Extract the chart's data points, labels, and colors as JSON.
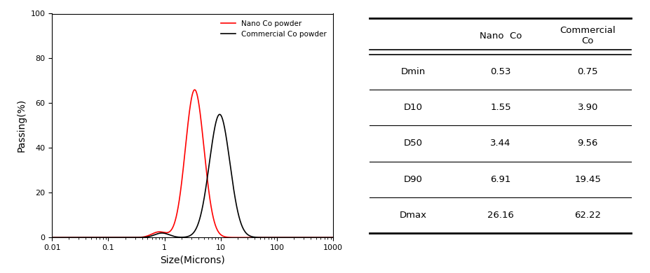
{
  "nano_peak": 3.44,
  "nano_sigma": 0.38,
  "nano_peak_height": 66,
  "commercial_peak": 9.56,
  "commercial_sigma": 0.42,
  "commercial_peak_height": 55,
  "nano_color": "#ff0000",
  "commercial_color": "#000000",
  "xlim_log": [
    0.01,
    1000
  ],
  "ylim": [
    0,
    100
  ],
  "xlabel": "Size(Microns)",
  "ylabel": "Passing(%)",
  "legend_nano": "Nano Co powder",
  "legend_commercial": "Commercial Co powder",
  "table_rows": [
    "Dmin",
    "D10",
    "D50",
    "D90",
    "Dmax"
  ],
  "nano_values": [
    "0.53",
    "1.55",
    "3.44",
    "6.91",
    "26.16"
  ],
  "commercial_values": [
    "0.75",
    "3.90",
    "9.56",
    "19.45",
    "62.22"
  ],
  "col_nano": "Nano  Co",
  "col_commercial": "Commercial\nCo",
  "background": "#ffffff"
}
